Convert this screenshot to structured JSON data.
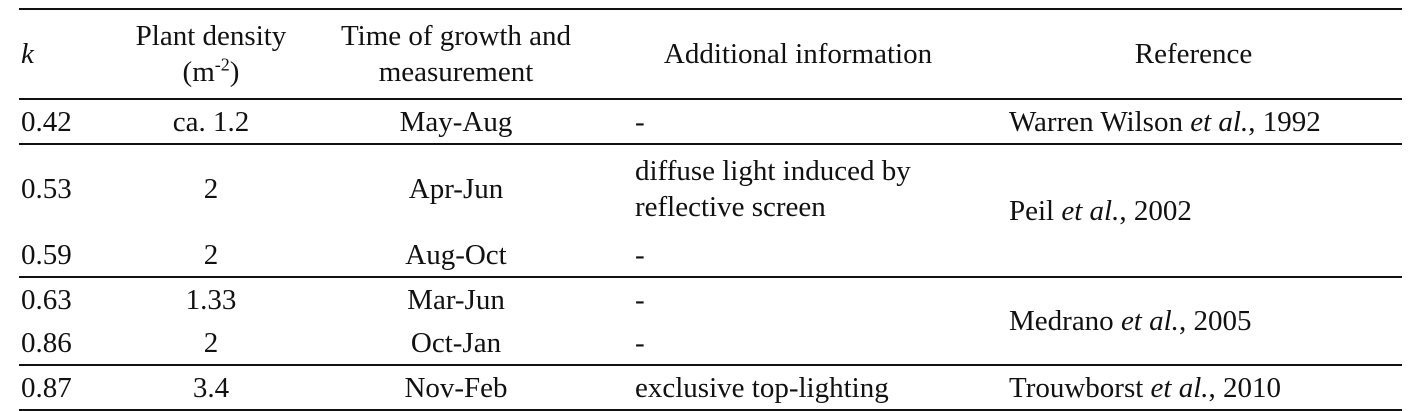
{
  "header": {
    "k": "k",
    "density_line1": "Plant density",
    "density_unit_base": "(m",
    "density_unit_sup": "-2",
    "density_unit_close": ")",
    "time_line1": "Time of growth and",
    "time_line2": "measurement",
    "additional": "Additional information",
    "reference": "Reference"
  },
  "rows": [
    {
      "k": "0.42",
      "density": "ca. 1.2",
      "time": "May-Aug",
      "info": "-",
      "ref_author": "Warren Wilson",
      "ref_etal": "et al.",
      "ref_year": ", 1992"
    },
    {
      "k": "0.53",
      "density": "2",
      "time": "Apr-Jun",
      "info_line1": "diffuse light induced by",
      "info_line2": "reflective screen",
      "ref_author": "Peil",
      "ref_etal": "et al.",
      "ref_year": ", 2002"
    },
    {
      "k": "0.59",
      "density": "2",
      "time": "Aug-Oct",
      "info": "-"
    },
    {
      "k": "0.63",
      "density": "1.33",
      "time": "Mar-Jun",
      "info": "-",
      "ref_author": "Medrano",
      "ref_etal": "et al.",
      "ref_year": ", 2005"
    },
    {
      "k": "0.86",
      "density": "2",
      "time": "Oct-Jan",
      "info": "-"
    },
    {
      "k": "0.87",
      "density": "3.4",
      "time": "Nov-Feb",
      "info": "exclusive top-lighting",
      "ref_author": "Trouwborst",
      "ref_etal": "et al.",
      "ref_year": ", 2010"
    }
  ]
}
